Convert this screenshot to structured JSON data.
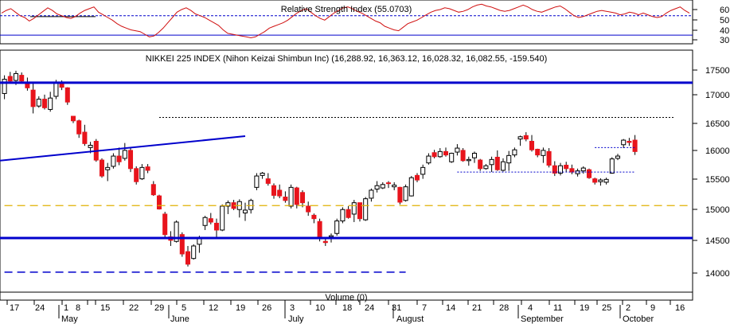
{
  "colors": {
    "up": "#ffffff",
    "down": "#e8141c",
    "wick": "#000000",
    "rsi": "#d01010",
    "trend": "#0000cc",
    "support": "#0000cc",
    "dashed_yellow": "#e0b000",
    "grid": "#000000"
  },
  "rsi_panel": {
    "title": "Relative Strength Index (55.0703)",
    "ticks": [
      "60",
      "50",
      "40",
      "30"
    ]
  },
  "price_panel": {
    "title": "NIKKEI 225 INDEX (Nihon Keizai Shimbun Inc) (16,288.92, 16,363.12, 16,028.32, 16,082.55, -159.540)",
    "ticks": [
      "17500",
      "17000",
      "16500",
      "16000",
      "15500",
      "15000",
      "14500",
      "14000"
    ]
  },
  "volume_label": "Volume (0)",
  "x_axis": {
    "day_labels": [
      "17",
      "24",
      "1",
      "8",
      "15",
      "22",
      "29",
      "5",
      "12",
      "19",
      "26",
      "3",
      "10",
      "18",
      "24",
      "31",
      "7",
      "14",
      "21",
      "28",
      "4",
      "11",
      "19",
      "25",
      "2",
      "9",
      "16"
    ],
    "month_labels": [
      "May",
      "June",
      "July",
      "August",
      "September",
      "October"
    ]
  },
  "chart_data": [
    {
      "type": "line",
      "title": "Relative Strength Index (55.0703)",
      "ylim": [
        22,
        68
      ],
      "series": [
        {
          "name": "RSI",
          "values": [
            55,
            58,
            60,
            56,
            52,
            50,
            46,
            49,
            53,
            57,
            61,
            58,
            54,
            52,
            50,
            49,
            51,
            55,
            58,
            60,
            62,
            56,
            53,
            50,
            47,
            43,
            40,
            38,
            36,
            35,
            34,
            31,
            28,
            29,
            33,
            38,
            44,
            50,
            56,
            59,
            61,
            58,
            54,
            52,
            50,
            47,
            44,
            41,
            36,
            32,
            31,
            30,
            29,
            28,
            27,
            28,
            31,
            34,
            38,
            40,
            42,
            44,
            47,
            51,
            55,
            58,
            60,
            56,
            52,
            49,
            47,
            51,
            55,
            58,
            61,
            62,
            60,
            57,
            55,
            52,
            49,
            46,
            44,
            40,
            38,
            36,
            35,
            39,
            43,
            45,
            47,
            50,
            53,
            56,
            58,
            59,
            61,
            60,
            58,
            56,
            57,
            59,
            62,
            64,
            65,
            63,
            62,
            60,
            58,
            57,
            58,
            60,
            62,
            64,
            62,
            59,
            57,
            56,
            58,
            60,
            62,
            63,
            60,
            56,
            52,
            50,
            51,
            53,
            55,
            57,
            58,
            57,
            56,
            55,
            53,
            54,
            56,
            55,
            53,
            55,
            53,
            51,
            50,
            51,
            55,
            58,
            60,
            62,
            58,
            55
          ]
        }
      ],
      "reference_lines": [
        52
      ]
    },
    {
      "type": "candlestick",
      "title": "NIKKEI 225 INDEX (Nihon Keizai Shimbun Inc) (16,288.92, 16,363.12, 16,028.32, 16,082.55, -159.540)",
      "ylim": [
        13650,
        17820
      ],
      "ohlc": [
        [
          17100,
          17420,
          17000,
          17350
        ],
        [
          17400,
          17480,
          17280,
          17320
        ],
        [
          17330,
          17500,
          17250,
          17450
        ],
        [
          17420,
          17470,
          17300,
          17320
        ],
        [
          17300,
          17380,
          17150,
          17200
        ],
        [
          17160,
          17300,
          16750,
          16870
        ],
        [
          16880,
          17050,
          16850,
          17000
        ],
        [
          17000,
          17080,
          16820,
          16850
        ],
        [
          16820,
          17130,
          16780,
          17020
        ],
        [
          17050,
          17340,
          17000,
          17300
        ],
        [
          17290,
          17330,
          17160,
          17210
        ],
        [
          17200,
          17210,
          16900,
          16950
        ],
        [
          16700,
          16690,
          16580,
          16620
        ],
        [
          16620,
          16640,
          16320,
          16390
        ],
        [
          16420,
          16550,
          16180,
          16220
        ],
        [
          16150,
          16250,
          16050,
          16190
        ],
        [
          16260,
          16300,
          15900,
          15930
        ],
        [
          15930,
          15960,
          15620,
          15650
        ],
        [
          15760,
          15880,
          15560,
          15800
        ],
        [
          15820,
          16050,
          15780,
          16000
        ],
        [
          16000,
          16150,
          15840,
          15900
        ],
        [
          15960,
          16230,
          15920,
          16100
        ],
        [
          16100,
          16150,
          15720,
          15780
        ],
        [
          15780,
          15820,
          15500,
          15550
        ],
        [
          15600,
          15860,
          15580,
          15800
        ],
        [
          15810,
          15860,
          15700,
          15750
        ],
        [
          15500,
          15560,
          15300,
          15320
        ],
        [
          15300,
          15320,
          15060,
          15070
        ],
        [
          14980,
          15020,
          14580,
          14620
        ],
        [
          14580,
          14680,
          14420,
          14520
        ],
        [
          14500,
          14870,
          14480,
          14840
        ],
        [
          14620,
          14660,
          14230,
          14280
        ],
        [
          14320,
          14420,
          14060,
          14100
        ],
        [
          14200,
          14450,
          14180,
          14420
        ],
        [
          14450,
          14600,
          14300,
          14560
        ],
        [
          14780,
          14950,
          14700,
          14920
        ],
        [
          14900,
          15000,
          14800,
          14840
        ],
        [
          14820,
          14900,
          14560,
          14700
        ],
        [
          14700,
          15150,
          14680,
          15120
        ],
        [
          15120,
          15220,
          14980,
          15180
        ],
        [
          15180,
          15230,
          15050,
          15080
        ],
        [
          15060,
          15240,
          14920,
          15200
        ],
        [
          15000,
          15180,
          14860,
          15050
        ],
        [
          15060,
          15250,
          14990,
          15220
        ],
        [
          15450,
          15700,
          15400,
          15650
        ],
        [
          15660,
          15720,
          15600,
          15700
        ],
        [
          15600,
          15700,
          15480,
          15520
        ],
        [
          15480,
          15520,
          15250,
          15310
        ],
        [
          15400,
          15500,
          15260,
          15300
        ],
        [
          15280,
          15380,
          15180,
          15220
        ],
        [
          15120,
          15500,
          15080,
          15450
        ],
        [
          15440,
          15460,
          15080,
          15150
        ],
        [
          15360,
          15400,
          15100,
          15180
        ],
        [
          15120,
          15200,
          14950,
          15020
        ],
        [
          14960,
          14990,
          14820,
          14900
        ],
        [
          14850,
          14900,
          14500,
          14550
        ],
        [
          14500,
          14560,
          14420,
          14480
        ],
        [
          14580,
          14640,
          14480,
          14600
        ],
        [
          14640,
          14900,
          14600,
          14860
        ],
        [
          14860,
          15100,
          14820,
          15060
        ],
        [
          15060,
          15120,
          14900,
          14920
        ],
        [
          14980,
          15230,
          14840,
          15180
        ],
        [
          15180,
          15180,
          14850,
          14900
        ],
        [
          14880,
          15280,
          14860,
          15250
        ],
        [
          15260,
          15430,
          15200,
          15400
        ],
        [
          15420,
          15560,
          15360,
          15480
        ],
        [
          15440,
          15540,
          15420,
          15500
        ],
        [
          15530,
          15560,
          15440,
          15520
        ],
        [
          15460,
          15540,
          15400,
          15490
        ],
        [
          15450,
          15460,
          15150,
          15190
        ],
        [
          15220,
          15500,
          15200,
          15460
        ],
        [
          15300,
          15650,
          15290,
          15620
        ],
        [
          15660,
          15700,
          15540,
          15580
        ],
        [
          15680,
          15850,
          15600,
          15800
        ],
        [
          15880,
          16050,
          15850,
          16000
        ],
        [
          16060,
          16110,
          15960,
          15990
        ],
        [
          15990,
          16140,
          15970,
          16080
        ],
        [
          16080,
          16150,
          15990,
          16020
        ],
        [
          15900,
          16060,
          15880,
          16050
        ],
        [
          16070,
          16210,
          16010,
          16140
        ],
        [
          16100,
          16140,
          15900,
          15920
        ],
        [
          15920,
          15990,
          15830,
          15940
        ],
        [
          15970,
          16080,
          15880,
          16050
        ],
        [
          15930,
          15950,
          15740,
          15780
        ],
        [
          15780,
          15860,
          15760,
          15830
        ],
        [
          15850,
          15990,
          15720,
          15940
        ],
        [
          15980,
          16100,
          15740,
          15760
        ],
        [
          15750,
          15960,
          15730,
          15900
        ],
        [
          15880,
          16090,
          15740,
          16010
        ],
        [
          16020,
          16150,
          15980,
          16110
        ],
        [
          16300,
          16360,
          16180,
          16340
        ],
        [
          16360,
          16420,
          16260,
          16300
        ],
        [
          16260,
          16370,
          16080,
          16110
        ],
        [
          16120,
          16130,
          15980,
          16020
        ],
        [
          16010,
          16150,
          15880,
          16100
        ],
        [
          16080,
          16140,
          15800,
          15840
        ],
        [
          15830,
          15910,
          15650,
          15700
        ],
        [
          15700,
          15880,
          15660,
          15830
        ],
        [
          15840,
          15900,
          15720,
          15780
        ],
        [
          15780,
          15850,
          15680,
          15720
        ],
        [
          15690,
          15780,
          15640,
          15740
        ],
        [
          15740,
          15820,
          15690,
          15790
        ],
        [
          15760,
          15780,
          15600,
          15620
        ],
        [
          15600,
          15620,
          15500,
          15540
        ],
        [
          15550,
          15610,
          15480,
          15580
        ],
        [
          15540,
          15620,
          15500,
          15590
        ],
        [
          15700,
          15980,
          15690,
          15950
        ],
        [
          15960,
          16040,
          15930,
          16000
        ],
        [
          16200,
          16300,
          16140,
          16280
        ],
        [
          16260,
          16320,
          16180,
          16240
        ],
        [
          16280,
          16370,
          16020,
          16080
        ]
      ],
      "trend_lines": [
        {
          "from": [
            0,
            15920
          ],
          "to": [
            42,
            16350
          ]
        }
      ],
      "support_lines": [
        17290,
        14560
      ],
      "dotted_levels": [
        {
          "start": 27,
          "end": 150,
          "y": 16680
        },
        {
          "start": 79,
          "end": 110,
          "y": 15720
        },
        {
          "start": 103,
          "end": 110,
          "y": 16150
        }
      ],
      "dashed_levels": [
        {
          "start": 0,
          "end": 150,
          "y": 15130,
          "color": "dashed_yellow"
        },
        {
          "start": 0,
          "end": 70,
          "y": 13960,
          "color": "support"
        }
      ]
    }
  ]
}
